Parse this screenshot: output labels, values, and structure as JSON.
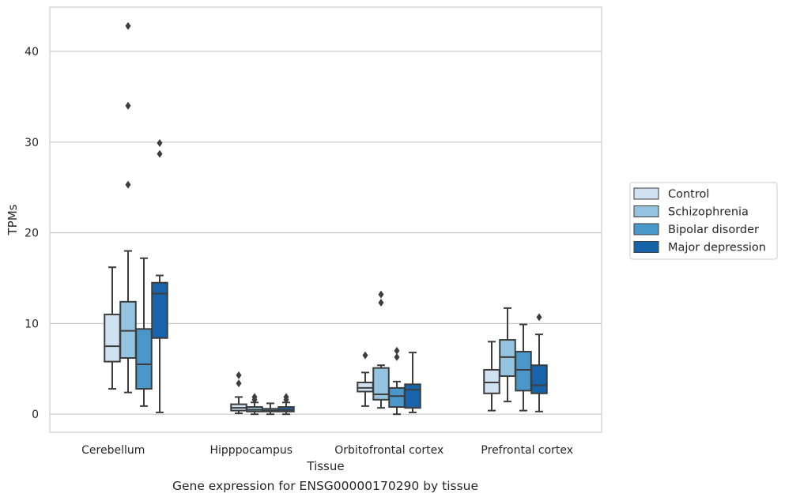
{
  "chart_data": {
    "type": "box",
    "xlabel": "Tissue",
    "ylabel": "TPMs",
    "ylim": [
      -2,
      45
    ],
    "yticks": [
      0,
      10,
      20,
      30,
      40
    ],
    "grid": "horizontal",
    "legend_position": "right",
    "categories": [
      "Cerebellum",
      "Hipppocampus",
      "Orbitofrontal cortex",
      "Prefrontal cortex"
    ],
    "series": [
      {
        "name": "Control",
        "color": "#d0e1f2",
        "boxes": [
          {
            "whislo": 2.8,
            "q1": 5.8,
            "med": 7.5,
            "q3": 11.0,
            "whishi": 16.2,
            "fliers": []
          },
          {
            "whislo": 0.1,
            "q1": 0.4,
            "med": 0.7,
            "q3": 1.1,
            "whishi": 1.9,
            "fliers": [
              3.4,
              4.3
            ]
          },
          {
            "whislo": 0.9,
            "q1": 2.5,
            "med": 2.9,
            "q3": 3.5,
            "whishi": 4.6,
            "fliers": [
              6.5
            ]
          },
          {
            "whislo": 0.4,
            "q1": 2.3,
            "med": 3.5,
            "q3": 4.9,
            "whishi": 8.0,
            "fliers": []
          }
        ]
      },
      {
        "name": "Schizophrenia",
        "color": "#94c4df",
        "boxes": [
          {
            "whislo": 2.4,
            "q1": 6.2,
            "med": 9.2,
            "q3": 12.4,
            "whishi": 18.0,
            "fliers": [
              25.3,
              34.0,
              42.8
            ]
          },
          {
            "whislo": 0.0,
            "q1": 0.3,
            "med": 0.5,
            "q3": 0.8,
            "whishi": 1.3,
            "fliers": [
              1.6,
              1.9
            ]
          },
          {
            "whislo": 0.7,
            "q1": 1.6,
            "med": 2.2,
            "q3": 5.1,
            "whishi": 5.4,
            "fliers": [
              12.3,
              13.2
            ]
          },
          {
            "whislo": 1.4,
            "q1": 4.2,
            "med": 6.3,
            "q3": 8.2,
            "whishi": 11.7,
            "fliers": []
          }
        ]
      },
      {
        "name": "Bipolar disorder",
        "color": "#4a98c9",
        "boxes": [
          {
            "whislo": 0.9,
            "q1": 2.8,
            "med": 5.5,
            "q3": 9.4,
            "whishi": 17.2,
            "fliers": []
          },
          {
            "whislo": 0.0,
            "q1": 0.3,
            "med": 0.4,
            "q3": 0.6,
            "whishi": 1.2,
            "fliers": []
          },
          {
            "whislo": 0.0,
            "q1": 0.8,
            "med": 2.0,
            "q3": 2.9,
            "whishi": 3.6,
            "fliers": [
              6.3,
              7.0
            ]
          },
          {
            "whislo": 0.4,
            "q1": 2.6,
            "med": 4.9,
            "q3": 6.9,
            "whishi": 9.9,
            "fliers": []
          }
        ]
      },
      {
        "name": "Major depression",
        "color": "#1764ab",
        "boxes": [
          {
            "whislo": 0.2,
            "q1": 8.4,
            "med": 13.3,
            "q3": 14.5,
            "whishi": 15.3,
            "fliers": [
              28.7,
              29.9
            ]
          },
          {
            "whislo": 0.0,
            "q1": 0.3,
            "med": 0.5,
            "q3": 0.8,
            "whishi": 1.3,
            "fliers": [
              1.6,
              1.9
            ]
          },
          {
            "whislo": 0.2,
            "q1": 0.7,
            "med": 2.7,
            "q3": 3.3,
            "whishi": 6.8,
            "fliers": []
          },
          {
            "whislo": 0.3,
            "q1": 2.3,
            "med": 3.2,
            "q3": 5.4,
            "whishi": 8.8,
            "fliers": [
              10.7
            ]
          }
        ]
      }
    ],
    "caption": "Gene expression for ENSG00000170290 by tissue"
  }
}
